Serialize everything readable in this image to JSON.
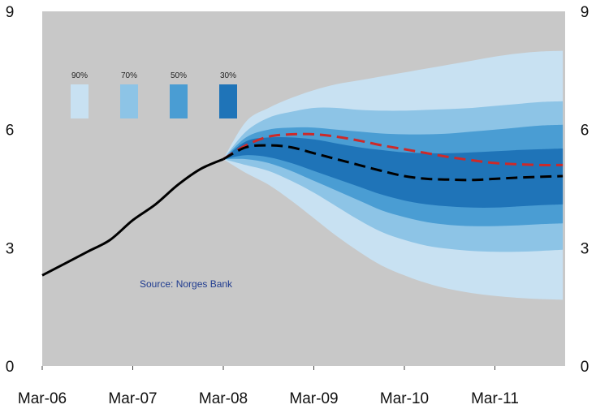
{
  "chart_data": {
    "type": "area",
    "title": "",
    "xlabel": "",
    "ylabel": "",
    "x_ticks": [
      "Mar-06",
      "Mar-07",
      "Mar-08",
      "Mar-09",
      "Mar-10",
      "Mar-11"
    ],
    "y_ticks": [
      "0",
      "3",
      "6",
      "9"
    ],
    "y_ticks_right": [
      "0",
      "3",
      "6",
      "9"
    ],
    "ylim": [
      0,
      9
    ],
    "xlim": [
      "2006-03",
      "2011-12"
    ],
    "grid": false,
    "legend": {
      "placement": "top-left",
      "entries": [
        "90%",
        "70%",
        "50%",
        "30%"
      ]
    },
    "annotation": "Source:  Norges Bank",
    "colors": {
      "background": "#c8c8c8",
      "fan_90": "#c8e1f2",
      "fan_70": "#8dc4e6",
      "fan_50": "#4a9dd3",
      "fan_30": "#1f74b8",
      "history_line": "#000000",
      "central_projection": "#000000",
      "alternative_projection": "#cc2a2a"
    },
    "history": {
      "x": [
        "2006-03",
        "2006-06",
        "2006-09",
        "2006-12",
        "2007-03",
        "2007-06",
        "2007-09",
        "2007-12",
        "2008-03"
      ],
      "y": [
        2.3,
        2.6,
        2.9,
        3.2,
        3.7,
        4.1,
        4.6,
        5.0,
        5.25
      ]
    },
    "fan": {
      "x": [
        "2008-03",
        "2008-06",
        "2008-09",
        "2008-12",
        "2009-03",
        "2009-06",
        "2009-09",
        "2009-12",
        "2010-03",
        "2010-06",
        "2010-09",
        "2010-12",
        "2011-03",
        "2011-06",
        "2011-09",
        "2011-12"
      ],
      "central": [
        5.25,
        5.55,
        5.6,
        5.55,
        5.4,
        5.25,
        5.1,
        4.95,
        4.82,
        4.75,
        4.73,
        4.72,
        4.75,
        4.78,
        4.8,
        4.82
      ],
      "bands": [
        {
          "name": "90%",
          "lower": [
            5.25,
            4.9,
            4.6,
            4.2,
            3.75,
            3.3,
            2.9,
            2.55,
            2.3,
            2.1,
            1.95,
            1.85,
            1.78,
            1.73,
            1.7,
            1.68
          ],
          "upper": [
            5.25,
            6.2,
            6.55,
            6.8,
            7.0,
            7.15,
            7.25,
            7.35,
            7.45,
            7.55,
            7.65,
            7.75,
            7.85,
            7.93,
            7.98,
            8.0
          ]
        },
        {
          "name": "70%",
          "lower": [
            5.25,
            5.1,
            4.95,
            4.7,
            4.4,
            4.05,
            3.7,
            3.4,
            3.2,
            3.05,
            2.97,
            2.92,
            2.9,
            2.9,
            2.92,
            2.95
          ],
          "upper": [
            5.25,
            5.95,
            6.3,
            6.45,
            6.55,
            6.55,
            6.5,
            6.48,
            6.48,
            6.5,
            6.52,
            6.55,
            6.6,
            6.65,
            6.7,
            6.72
          ]
        },
        {
          "name": "50%",
          "lower": [
            5.25,
            5.25,
            5.15,
            4.95,
            4.7,
            4.45,
            4.2,
            3.95,
            3.78,
            3.65,
            3.58,
            3.55,
            3.55,
            3.57,
            3.6,
            3.62
          ],
          "upper": [
            5.25,
            5.8,
            6.0,
            6.05,
            6.05,
            6.0,
            5.95,
            5.9,
            5.88,
            5.88,
            5.9,
            5.95,
            6.0,
            6.05,
            6.1,
            6.12
          ]
        },
        {
          "name": "30%",
          "lower": [
            5.25,
            5.35,
            5.3,
            5.15,
            4.95,
            4.75,
            4.55,
            4.35,
            4.2,
            4.1,
            4.05,
            4.02,
            4.02,
            4.05,
            4.08,
            4.1
          ],
          "upper": [
            5.25,
            5.7,
            5.8,
            5.8,
            5.75,
            5.65,
            5.55,
            5.48,
            5.42,
            5.4,
            5.4,
            5.42,
            5.45,
            5.48,
            5.5,
            5.52
          ]
        }
      ]
    },
    "alternative_projection": {
      "x": [
        "2008-03",
        "2008-06",
        "2008-09",
        "2008-12",
        "2009-03",
        "2009-06",
        "2009-09",
        "2009-12",
        "2010-03",
        "2010-06",
        "2010-09",
        "2010-12",
        "2011-03",
        "2011-06",
        "2011-09",
        "2011-12"
      ],
      "y": [
        5.25,
        5.6,
        5.82,
        5.88,
        5.88,
        5.82,
        5.72,
        5.6,
        5.5,
        5.4,
        5.3,
        5.22,
        5.15,
        5.12,
        5.1,
        5.1
      ]
    }
  }
}
